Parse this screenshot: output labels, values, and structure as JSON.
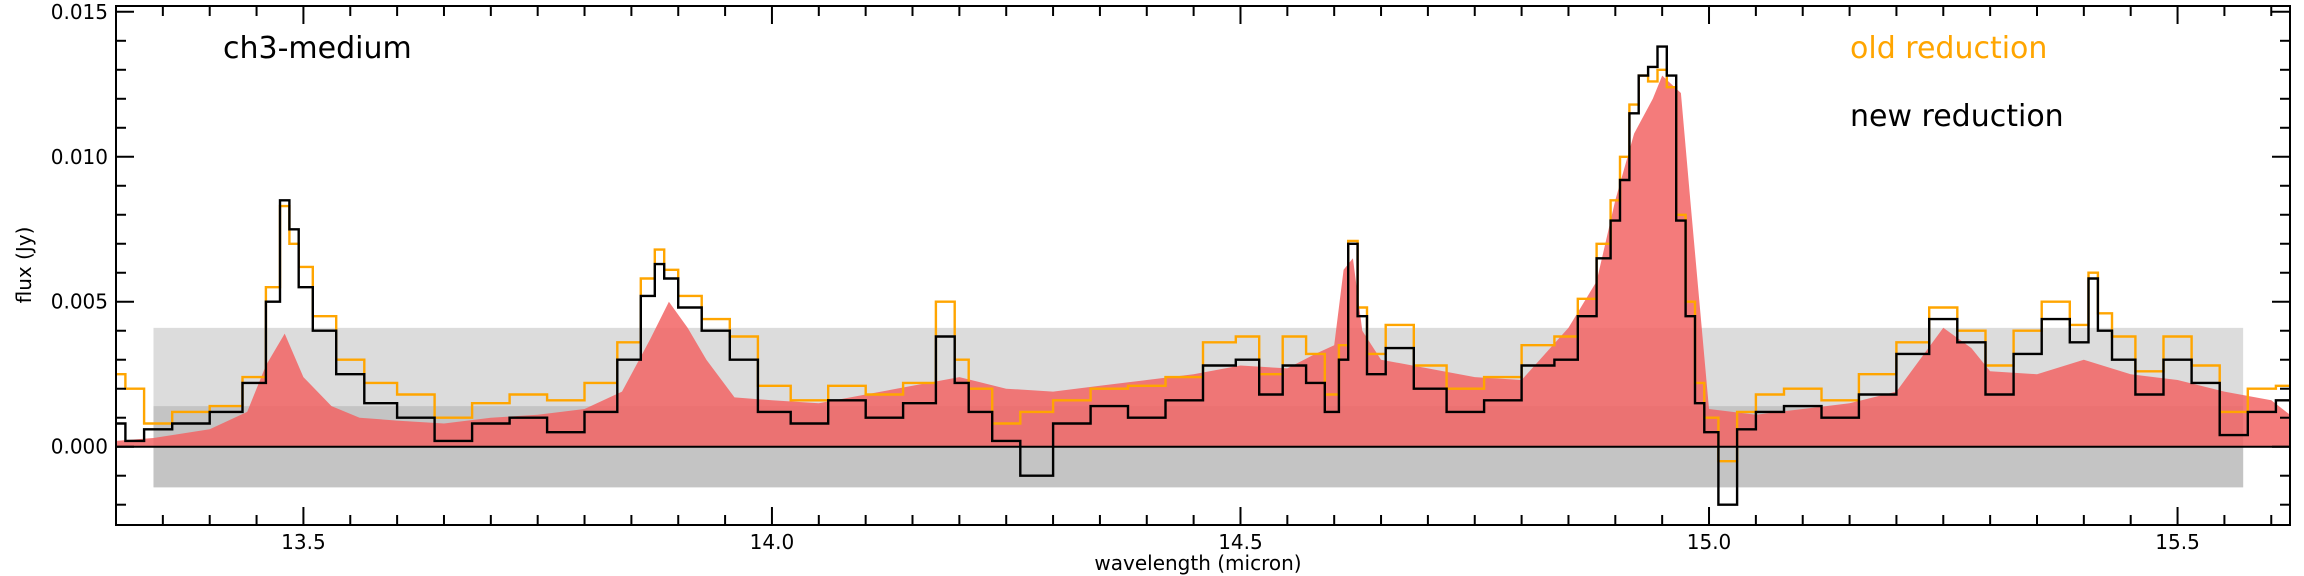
{
  "chart_data": {
    "type": "line",
    "panel_label": "ch3-medium",
    "xlabel": "wavelength (micron)",
    "ylabel": "flux (Jy)",
    "xlim": [
      13.3,
      15.62
    ],
    "ylim": [
      -0.0027,
      0.0152
    ],
    "x_ticks": [
      13.5,
      14.0,
      14.5,
      15.0,
      15.5
    ],
    "x_tick_labels": [
      "13.5",
      "14.0",
      "14.5",
      "15.0",
      "15.5"
    ],
    "y_ticks": [
      0.0,
      0.005,
      0.01,
      0.015
    ],
    "y_tick_labels": [
      "0.000",
      "0.005",
      "0.010",
      "0.015"
    ],
    "grid": false,
    "legend_position": "top-right",
    "bands": [
      {
        "y0": -0.0014,
        "y1": 0.0041,
        "x0": 13.34,
        "x1": 15.57,
        "color": "#dcdcdc"
      },
      {
        "y0": -0.0014,
        "y1": 0.0014,
        "x0": 13.34,
        "x1": 15.57,
        "color": "#c4c4c4"
      }
    ],
    "series": [
      {
        "name": "",
        "color": "#f26464",
        "style": "filled",
        "x": [
          13.3,
          13.34,
          13.4,
          13.44,
          13.46,
          13.48,
          13.5,
          13.53,
          13.56,
          13.6,
          13.65,
          13.7,
          13.75,
          13.8,
          13.84,
          13.87,
          13.89,
          13.91,
          13.93,
          13.96,
          14.0,
          14.05,
          14.1,
          14.15,
          14.2,
          14.25,
          14.3,
          14.35,
          14.4,
          14.45,
          14.5,
          14.55,
          14.58,
          14.6,
          14.61,
          14.62,
          14.63,
          14.65,
          14.7,
          14.75,
          14.8,
          14.85,
          14.88,
          14.9,
          14.92,
          14.94,
          14.95,
          14.97,
          14.98,
          15.0,
          15.05,
          15.1,
          15.15,
          15.2,
          15.25,
          15.28,
          15.3,
          15.35,
          15.4,
          15.45,
          15.5,
          15.55,
          15.6,
          15.62
        ],
        "y": [
          0.0002,
          0.0003,
          0.0006,
          0.0012,
          0.0028,
          0.0039,
          0.0024,
          0.0014,
          0.001,
          0.0009,
          0.0008,
          0.001,
          0.0011,
          0.0013,
          0.0019,
          0.0037,
          0.005,
          0.0041,
          0.003,
          0.0017,
          0.0016,
          0.0015,
          0.0018,
          0.0021,
          0.0024,
          0.002,
          0.0019,
          0.0021,
          0.0023,
          0.0025,
          0.0028,
          0.0027,
          0.0032,
          0.0035,
          0.0061,
          0.0065,
          0.004,
          0.003,
          0.0027,
          0.0024,
          0.0023,
          0.0041,
          0.0057,
          0.0085,
          0.0108,
          0.012,
          0.0128,
          0.0122,
          0.0085,
          0.0013,
          0.0011,
          0.0013,
          0.0015,
          0.0019,
          0.0041,
          0.0034,
          0.0026,
          0.0025,
          0.003,
          0.0025,
          0.0023,
          0.0019,
          0.0016,
          0.0011
        ]
      },
      {
        "name": "old reduction",
        "color": "#ffa500",
        "style": "line",
        "x": [
          13.3,
          13.32,
          13.34,
          13.38,
          13.42,
          13.45,
          13.47,
          13.48,
          13.49,
          13.5,
          13.52,
          13.55,
          13.58,
          13.62,
          13.66,
          13.7,
          13.74,
          13.78,
          13.82,
          13.85,
          13.87,
          13.88,
          13.89,
          13.91,
          13.94,
          13.97,
          14.0,
          14.04,
          14.08,
          14.12,
          14.16,
          14.19,
          14.2,
          14.22,
          14.25,
          14.28,
          14.32,
          14.36,
          14.4,
          14.44,
          14.48,
          14.51,
          14.53,
          14.56,
          14.58,
          14.6,
          14.61,
          14.62,
          14.63,
          14.64,
          14.67,
          14.7,
          14.74,
          14.78,
          14.82,
          14.85,
          14.87,
          14.89,
          14.9,
          14.91,
          14.92,
          14.93,
          14.94,
          14.95,
          14.96,
          14.97,
          14.98,
          14.99,
          15.0,
          15.02,
          15.04,
          15.06,
          15.1,
          15.14,
          15.18,
          15.22,
          15.25,
          15.28,
          15.31,
          15.34,
          15.37,
          15.4,
          15.41,
          15.42,
          15.44,
          15.47,
          15.5,
          15.53,
          15.56,
          15.59,
          15.62
        ],
        "y": [
          0.0025,
          0.002,
          0.0008,
          0.0012,
          0.0014,
          0.0024,
          0.0055,
          0.0083,
          0.007,
          0.0062,
          0.0045,
          0.003,
          0.0022,
          0.0018,
          0.001,
          0.0015,
          0.0018,
          0.0016,
          0.0022,
          0.0036,
          0.0058,
          0.0068,
          0.0061,
          0.0052,
          0.0044,
          0.0038,
          0.0021,
          0.0016,
          0.0021,
          0.0018,
          0.0022,
          0.005,
          0.003,
          0.002,
          0.0008,
          0.0012,
          0.0016,
          0.002,
          0.0021,
          0.0024,
          0.0036,
          0.0038,
          0.0025,
          0.0038,
          0.0032,
          0.0018,
          0.0035,
          0.0071,
          0.0048,
          0.0032,
          0.0042,
          0.0028,
          0.002,
          0.0024,
          0.0035,
          0.0038,
          0.0051,
          0.007,
          0.0085,
          0.01,
          0.0118,
          0.0128,
          0.0126,
          0.013,
          0.0124,
          0.008,
          0.005,
          0.0022,
          0.001,
          -0.0005,
          0.0012,
          0.0018,
          0.002,
          0.0016,
          0.0025,
          0.0036,
          0.0048,
          0.004,
          0.0028,
          0.004,
          0.005,
          0.0042,
          0.006,
          0.0046,
          0.0038,
          0.0026,
          0.0038,
          0.0028,
          0.0012,
          0.002,
          0.0021
        ]
      },
      {
        "name": "new reduction",
        "color": "#000000",
        "style": "line",
        "x": [
          13.3,
          13.32,
          13.34,
          13.38,
          13.42,
          13.45,
          13.47,
          13.48,
          13.49,
          13.5,
          13.52,
          13.55,
          13.58,
          13.62,
          13.66,
          13.7,
          13.74,
          13.78,
          13.82,
          13.85,
          13.87,
          13.88,
          13.89,
          13.91,
          13.94,
          13.97,
          14.0,
          14.04,
          14.08,
          14.12,
          14.16,
          14.19,
          14.2,
          14.22,
          14.25,
          14.28,
          14.32,
          14.36,
          14.4,
          14.44,
          14.48,
          14.51,
          14.53,
          14.56,
          14.58,
          14.6,
          14.61,
          14.62,
          14.63,
          14.64,
          14.67,
          14.7,
          14.74,
          14.78,
          14.82,
          14.85,
          14.87,
          14.89,
          14.9,
          14.91,
          14.92,
          14.93,
          14.94,
          14.95,
          14.96,
          14.97,
          14.98,
          14.99,
          15.0,
          15.02,
          15.04,
          15.06,
          15.1,
          15.14,
          15.18,
          15.22,
          15.25,
          15.28,
          15.31,
          15.34,
          15.37,
          15.4,
          15.41,
          15.42,
          15.44,
          15.47,
          15.5,
          15.53,
          15.56,
          15.59,
          15.62
        ],
        "y": [
          0.0008,
          0.0002,
          0.0006,
          0.0008,
          0.0012,
          0.0022,
          0.005,
          0.0085,
          0.0075,
          0.0055,
          0.004,
          0.0025,
          0.0015,
          0.001,
          0.0002,
          0.0008,
          0.001,
          0.0005,
          0.0012,
          0.003,
          0.0052,
          0.0063,
          0.0058,
          0.0048,
          0.004,
          0.003,
          0.0012,
          0.0008,
          0.0016,
          0.001,
          0.0015,
          0.0038,
          0.0022,
          0.0012,
          0.0002,
          -0.001,
          0.0008,
          0.0014,
          0.001,
          0.0016,
          0.0028,
          0.003,
          0.0018,
          0.0028,
          0.0022,
          0.0012,
          0.003,
          0.007,
          0.0045,
          0.0025,
          0.0034,
          0.002,
          0.0012,
          0.0016,
          0.0028,
          0.003,
          0.0045,
          0.0065,
          0.0078,
          0.0092,
          0.0115,
          0.0128,
          0.0131,
          0.0138,
          0.0128,
          0.0078,
          0.0045,
          0.0015,
          0.0005,
          -0.002,
          0.0006,
          0.0012,
          0.0014,
          0.001,
          0.0018,
          0.0032,
          0.0044,
          0.0036,
          0.0018,
          0.0032,
          0.0044,
          0.0036,
          0.0058,
          0.004,
          0.003,
          0.0018,
          0.003,
          0.0022,
          0.0004,
          0.0012,
          0.0016
        ]
      }
    ]
  }
}
